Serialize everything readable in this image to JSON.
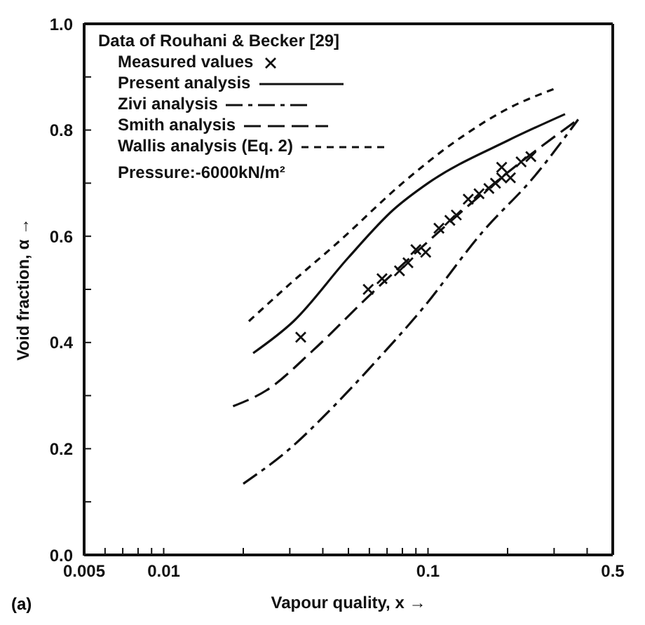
{
  "chart_data": {
    "type": "line",
    "legend_title": "Data of Rouhani & Becker [29]",
    "xlabel": "Vapour quality, x →",
    "ylabel": "Void fraction, α →",
    "log": "x",
    "xlim": [
      0.005,
      0.5
    ],
    "ylim": [
      0,
      1
    ],
    "xticks": [
      0.005,
      {
        "value": 0.006,
        "label": null
      },
      {
        "value": 0.007,
        "label": null
      },
      {
        "value": 0.008,
        "label": null
      },
      {
        "value": 0.009,
        "label": null
      },
      0.01,
      {
        "value": 0.02,
        "label": null
      },
      {
        "value": 0.03,
        "label": null
      },
      {
        "value": 0.04,
        "label": null
      },
      {
        "value": 0.05,
        "label": null
      },
      {
        "value": 0.06,
        "label": null
      },
      {
        "value": 0.07,
        "label": null
      },
      {
        "value": 0.08,
        "label": null
      },
      {
        "value": 0.09,
        "label": null
      },
      0.1,
      {
        "value": 0.2,
        "label": null
      },
      {
        "value": 0.3,
        "label": null
      },
      {
        "value": 0.4,
        "label": null
      },
      0.5
    ],
    "yticks": [
      {
        "value": 0,
        "label": "0.0"
      },
      {
        "value": 0.1,
        "label": null
      },
      0.2,
      {
        "value": 0.3,
        "label": null
      },
      0.4,
      {
        "value": 0.5,
        "label": null
      },
      0.6,
      {
        "value": 0.7,
        "label": null
      },
      0.8,
      {
        "value": 0.9,
        "label": null
      },
      {
        "value": 1,
        "label": "1.0"
      }
    ],
    "legend": "top left",
    "annotations": [
      "Pressure:-6000kN/m²",
      "(a)"
    ],
    "series": [
      {
        "name": "Measured values",
        "type": "scatter",
        "marker": "cross",
        "color": "#111111",
        "x": [
          0.033,
          0.0594,
          0.067,
          0.078,
          0.084,
          0.09,
          0.098,
          0.11,
          0.121,
          0.128,
          0.142,
          0.156,
          0.17,
          0.18,
          0.19,
          0.19,
          0.205,
          0.225,
          0.245
        ],
        "values": [
          0.41,
          0.5,
          0.52,
          0.535,
          0.55,
          0.575,
          0.57,
          0.615,
          0.63,
          0.64,
          0.67,
          0.68,
          0.69,
          0.7,
          0.71,
          0.73,
          0.71,
          0.74,
          0.75
        ]
      },
      {
        "name": "Present analysis",
        "line_style": "solid",
        "color": "#111111",
        "x": [
          0.0218,
          0.031,
          0.05,
          0.074,
          0.1,
          0.2,
          0.33
        ],
        "values": [
          0.38,
          0.44,
          0.56,
          0.65,
          0.7,
          0.78,
          0.83
        ]
      },
      {
        "name": "Zivi analysis",
        "line_style": "dashdot",
        "color": "#111111",
        "x": [
          0.02,
          0.03,
          0.044,
          0.065,
          0.094,
          0.162,
          0.25,
          0.37
        ],
        "values": [
          0.134,
          0.2,
          0.28,
          0.37,
          0.46,
          0.61,
          0.71,
          0.82
        ]
      },
      {
        "name": "Smith analysis",
        "line_style": "dashed",
        "color": "#111111",
        "x": [
          0.0183,
          0.0245,
          0.0367,
          0.059,
          0.1,
          0.2,
          0.37
        ],
        "values": [
          0.28,
          0.31,
          0.385,
          0.485,
          0.59,
          0.72,
          0.82
        ]
      },
      {
        "name": "Wallis analysis (Eq. 2)",
        "line_style": "dotted",
        "color": "#111111",
        "x": [
          0.021,
          0.03,
          0.046,
          0.08,
          0.128,
          0.2,
          0.31
        ],
        "values": [
          0.44,
          0.51,
          0.59,
          0.7,
          0.78,
          0.84,
          0.88
        ]
      }
    ]
  }
}
